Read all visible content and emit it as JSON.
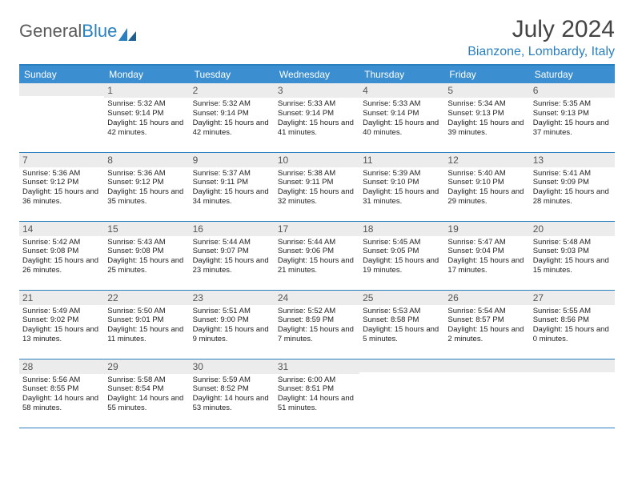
{
  "logo": {
    "text_gray": "General",
    "text_blue": "Blue"
  },
  "title": "July 2024",
  "location": "Bianzone, Lombardy, Italy",
  "colors": {
    "header_bg": "#3b8fd0",
    "header_text": "#ffffff",
    "border": "#2a7fbf",
    "daynum_bg": "#ececec",
    "daynum_text": "#555555",
    "body_text": "#222222",
    "title_text": "#444444",
    "location_text": "#2a7fbf"
  },
  "weekdays": [
    "Sunday",
    "Monday",
    "Tuesday",
    "Wednesday",
    "Thursday",
    "Friday",
    "Saturday"
  ],
  "weeks": [
    [
      {
        "n": "",
        "t": ""
      },
      {
        "n": "1",
        "t": "Sunrise: 5:32 AM\nSunset: 9:14 PM\nDaylight: 15 hours and 42 minutes."
      },
      {
        "n": "2",
        "t": "Sunrise: 5:32 AM\nSunset: 9:14 PM\nDaylight: 15 hours and 42 minutes."
      },
      {
        "n": "3",
        "t": "Sunrise: 5:33 AM\nSunset: 9:14 PM\nDaylight: 15 hours and 41 minutes."
      },
      {
        "n": "4",
        "t": "Sunrise: 5:33 AM\nSunset: 9:14 PM\nDaylight: 15 hours and 40 minutes."
      },
      {
        "n": "5",
        "t": "Sunrise: 5:34 AM\nSunset: 9:13 PM\nDaylight: 15 hours and 39 minutes."
      },
      {
        "n": "6",
        "t": "Sunrise: 5:35 AM\nSunset: 9:13 PM\nDaylight: 15 hours and 37 minutes."
      }
    ],
    [
      {
        "n": "7",
        "t": "Sunrise: 5:36 AM\nSunset: 9:12 PM\nDaylight: 15 hours and 36 minutes."
      },
      {
        "n": "8",
        "t": "Sunrise: 5:36 AM\nSunset: 9:12 PM\nDaylight: 15 hours and 35 minutes."
      },
      {
        "n": "9",
        "t": "Sunrise: 5:37 AM\nSunset: 9:11 PM\nDaylight: 15 hours and 34 minutes."
      },
      {
        "n": "10",
        "t": "Sunrise: 5:38 AM\nSunset: 9:11 PM\nDaylight: 15 hours and 32 minutes."
      },
      {
        "n": "11",
        "t": "Sunrise: 5:39 AM\nSunset: 9:10 PM\nDaylight: 15 hours and 31 minutes."
      },
      {
        "n": "12",
        "t": "Sunrise: 5:40 AM\nSunset: 9:10 PM\nDaylight: 15 hours and 29 minutes."
      },
      {
        "n": "13",
        "t": "Sunrise: 5:41 AM\nSunset: 9:09 PM\nDaylight: 15 hours and 28 minutes."
      }
    ],
    [
      {
        "n": "14",
        "t": "Sunrise: 5:42 AM\nSunset: 9:08 PM\nDaylight: 15 hours and 26 minutes."
      },
      {
        "n": "15",
        "t": "Sunrise: 5:43 AM\nSunset: 9:08 PM\nDaylight: 15 hours and 25 minutes."
      },
      {
        "n": "16",
        "t": "Sunrise: 5:44 AM\nSunset: 9:07 PM\nDaylight: 15 hours and 23 minutes."
      },
      {
        "n": "17",
        "t": "Sunrise: 5:44 AM\nSunset: 9:06 PM\nDaylight: 15 hours and 21 minutes."
      },
      {
        "n": "18",
        "t": "Sunrise: 5:45 AM\nSunset: 9:05 PM\nDaylight: 15 hours and 19 minutes."
      },
      {
        "n": "19",
        "t": "Sunrise: 5:47 AM\nSunset: 9:04 PM\nDaylight: 15 hours and 17 minutes."
      },
      {
        "n": "20",
        "t": "Sunrise: 5:48 AM\nSunset: 9:03 PM\nDaylight: 15 hours and 15 minutes."
      }
    ],
    [
      {
        "n": "21",
        "t": "Sunrise: 5:49 AM\nSunset: 9:02 PM\nDaylight: 15 hours and 13 minutes."
      },
      {
        "n": "22",
        "t": "Sunrise: 5:50 AM\nSunset: 9:01 PM\nDaylight: 15 hours and 11 minutes."
      },
      {
        "n": "23",
        "t": "Sunrise: 5:51 AM\nSunset: 9:00 PM\nDaylight: 15 hours and 9 minutes."
      },
      {
        "n": "24",
        "t": "Sunrise: 5:52 AM\nSunset: 8:59 PM\nDaylight: 15 hours and 7 minutes."
      },
      {
        "n": "25",
        "t": "Sunrise: 5:53 AM\nSunset: 8:58 PM\nDaylight: 15 hours and 5 minutes."
      },
      {
        "n": "26",
        "t": "Sunrise: 5:54 AM\nSunset: 8:57 PM\nDaylight: 15 hours and 2 minutes."
      },
      {
        "n": "27",
        "t": "Sunrise: 5:55 AM\nSunset: 8:56 PM\nDaylight: 15 hours and 0 minutes."
      }
    ],
    [
      {
        "n": "28",
        "t": "Sunrise: 5:56 AM\nSunset: 8:55 PM\nDaylight: 14 hours and 58 minutes."
      },
      {
        "n": "29",
        "t": "Sunrise: 5:58 AM\nSunset: 8:54 PM\nDaylight: 14 hours and 55 minutes."
      },
      {
        "n": "30",
        "t": "Sunrise: 5:59 AM\nSunset: 8:52 PM\nDaylight: 14 hours and 53 minutes."
      },
      {
        "n": "31",
        "t": "Sunrise: 6:00 AM\nSunset: 8:51 PM\nDaylight: 14 hours and 51 minutes."
      },
      {
        "n": "",
        "t": ""
      },
      {
        "n": "",
        "t": ""
      },
      {
        "n": "",
        "t": ""
      }
    ]
  ]
}
